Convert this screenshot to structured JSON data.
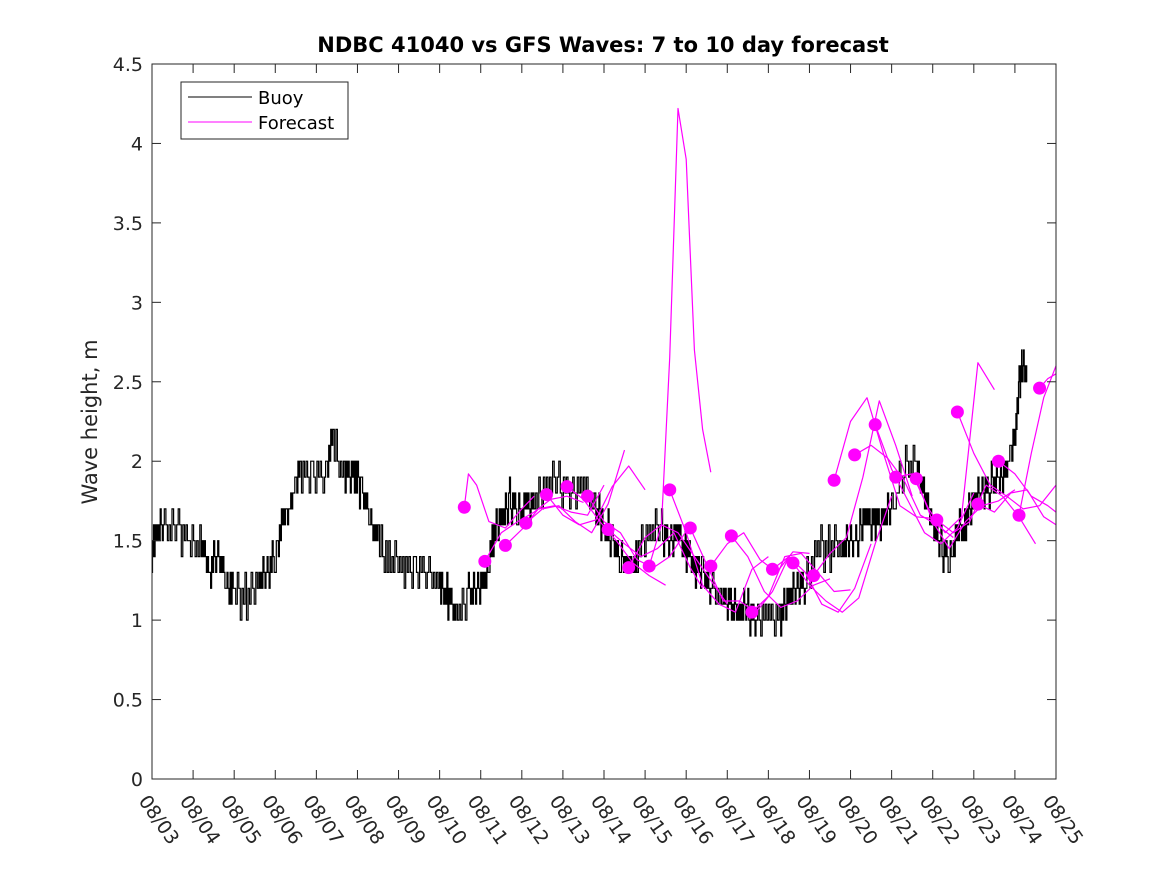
{
  "chart_data": {
    "type": "line",
    "title": "NDBC 41040 vs GFS Waves: 7 to 10 day forecast",
    "xlabel": "",
    "ylabel": "Wave height, m",
    "xlim": [
      0,
      22
    ],
    "ylim": [
      0,
      4.5
    ],
    "y_ticks": [
      {
        "value": 0,
        "label": "0"
      },
      {
        "value": 0.5,
        "label": "0.5"
      },
      {
        "value": 1,
        "label": "1"
      },
      {
        "value": 1.5,
        "label": "1.5"
      },
      {
        "value": 2,
        "label": "2"
      },
      {
        "value": 2.5,
        "label": "2.5"
      },
      {
        "value": 3,
        "label": "3"
      },
      {
        "value": 3.5,
        "label": "3.5"
      },
      {
        "value": 4,
        "label": "4"
      },
      {
        "value": 4.5,
        "label": "4.5"
      }
    ],
    "x_ticks": [
      {
        "value": 0,
        "label": "08/03"
      },
      {
        "value": 1,
        "label": "08/04"
      },
      {
        "value": 2,
        "label": "08/05"
      },
      {
        "value": 3,
        "label": "08/06"
      },
      {
        "value": 4,
        "label": "08/07"
      },
      {
        "value": 5,
        "label": "08/08"
      },
      {
        "value": 6,
        "label": "08/09"
      },
      {
        "value": 7,
        "label": "08/10"
      },
      {
        "value": 8,
        "label": "08/11"
      },
      {
        "value": 9,
        "label": "08/12"
      },
      {
        "value": 10,
        "label": "08/13"
      },
      {
        "value": 11,
        "label": "08/14"
      },
      {
        "value": 12,
        "label": "08/15"
      },
      {
        "value": 13,
        "label": "08/16"
      },
      {
        "value": 14,
        "label": "08/17"
      },
      {
        "value": 15,
        "label": "08/18"
      },
      {
        "value": 16,
        "label": "08/19"
      },
      {
        "value": 17,
        "label": "08/20"
      },
      {
        "value": 18,
        "label": "08/21"
      },
      {
        "value": 19,
        "label": "08/22"
      },
      {
        "value": 20,
        "label": "08/23"
      },
      {
        "value": 21,
        "label": "08/24"
      },
      {
        "value": 22,
        "label": "08/25"
      }
    ],
    "legend": {
      "position": "top-left",
      "entries": [
        {
          "name": "Buoy",
          "color": "#000000"
        },
        {
          "name": "Forecast",
          "color": "#ff00ff"
        }
      ]
    },
    "colors": {
      "buoy": "#000000",
      "forecast": "#ff00ff"
    },
    "series": [
      {
        "name": "Buoy",
        "role": "buoy",
        "x": [
          0,
          0.1,
          0.3,
          0.6,
          0.9,
          1.2,
          1.4,
          1.6,
          1.8,
          2.0,
          2.3,
          2.6,
          2.8,
          3.0,
          3.2,
          3.4,
          3.6,
          3.9,
          4.2,
          4.4,
          4.7,
          4.9,
          5.1,
          5.3,
          5.5,
          5.8,
          6.1,
          6.4,
          6.7,
          7.0,
          7.2,
          7.4,
          7.7,
          7.9,
          8.1,
          8.3,
          8.5,
          8.7,
          8.9,
          9.1,
          9.3,
          9.6,
          9.9,
          10.2,
          10.5,
          10.8,
          11.0,
          11.2,
          11.4,
          11.6,
          11.8,
          12.1,
          12.4,
          12.6,
          12.8,
          13.0,
          13.2,
          13.4,
          13.6,
          13.9,
          14.1,
          14.3,
          14.5,
          14.7,
          15.0,
          15.3,
          15.5,
          15.7,
          15.9,
          16.2,
          16.5,
          16.8,
          17.0,
          17.2,
          17.4,
          17.6,
          17.8,
          18.0,
          18.3,
          18.6,
          18.8,
          19.0,
          19.2,
          19.4,
          19.6,
          19.8,
          20.0,
          20.2,
          20.4,
          20.6,
          20.8,
          21.0,
          21.1,
          21.2,
          21.3
        ],
        "y": [
          1.4,
          1.6,
          1.55,
          1.6,
          1.45,
          1.5,
          1.3,
          1.4,
          1.25,
          1.15,
          1.15,
          1.25,
          1.3,
          1.4,
          1.6,
          1.75,
          1.95,
          1.9,
          1.9,
          2.1,
          1.9,
          1.95,
          1.8,
          1.65,
          1.5,
          1.35,
          1.35,
          1.3,
          1.3,
          1.2,
          1.15,
          1.05,
          1.15,
          1.2,
          1.25,
          1.5,
          1.65,
          1.75,
          1.65,
          1.7,
          1.75,
          1.85,
          1.85,
          1.8,
          1.85,
          1.7,
          1.6,
          1.5,
          1.4,
          1.3,
          1.4,
          1.55,
          1.55,
          1.5,
          1.55,
          1.45,
          1.35,
          1.3,
          1.2,
          1.1,
          1.1,
          1.05,
          1.05,
          1.0,
          1.0,
          1.0,
          1.15,
          1.2,
          1.25,
          1.45,
          1.45,
          1.5,
          1.45,
          1.55,
          1.65,
          1.6,
          1.65,
          1.7,
          1.95,
          1.95,
          1.75,
          1.6,
          1.45,
          1.4,
          1.55,
          1.6,
          1.75,
          1.8,
          1.85,
          1.85,
          1.95,
          2.15,
          2.45,
          2.65,
          2.5
        ]
      },
      {
        "name": "Forecast",
        "role": "forecast",
        "x": [
          7.6,
          7.7,
          7.9,
          8.2,
          8.6,
          9.0,
          9.3
        ],
        "y": [
          1.71,
          1.92,
          1.85,
          1.62,
          1.58,
          1.7,
          1.78
        ]
      },
      {
        "name": "Forecast",
        "role": "forecast",
        "x": [
          8.1,
          8.5,
          8.9,
          9.3,
          9.7,
          10.1,
          10.5
        ],
        "y": [
          1.37,
          1.55,
          1.62,
          1.68,
          1.76,
          1.78,
          1.74
        ]
      },
      {
        "name": "Forecast",
        "role": "forecast",
        "x": [
          8.6,
          9.0,
          9.4,
          9.8,
          10.2,
          10.6,
          11.0
        ],
        "y": [
          1.47,
          1.57,
          1.7,
          1.72,
          1.68,
          1.66,
          1.85
        ]
      },
      {
        "name": "Forecast",
        "role": "forecast",
        "x": [
          9.1,
          9.5,
          9.9,
          10.3,
          10.7,
          11.1,
          11.5
        ],
        "y": [
          1.61,
          1.7,
          1.72,
          1.62,
          1.55,
          1.73,
          2.07
        ]
      },
      {
        "name": "Forecast",
        "role": "forecast",
        "x": [
          9.6,
          10.0,
          10.4,
          10.8,
          11.2,
          11.6,
          12.0
        ],
        "y": [
          1.79,
          1.66,
          1.6,
          1.63,
          1.84,
          1.97,
          1.82
        ]
      },
      {
        "name": "Forecast",
        "role": "forecast",
        "x": [
          10.1,
          10.5,
          10.9,
          11.3,
          11.7,
          12.1,
          12.5
        ],
        "y": [
          1.84,
          1.76,
          1.62,
          1.5,
          1.36,
          1.28,
          1.22
        ]
      },
      {
        "name": "Forecast",
        "role": "forecast",
        "x": [
          10.6,
          11.0,
          11.4,
          11.8,
          12.2,
          12.6,
          13.0
        ],
        "y": [
          1.78,
          1.62,
          1.55,
          1.38,
          1.33,
          1.4,
          1.56
        ]
      },
      {
        "name": "Forecast",
        "role": "forecast",
        "x": [
          11.1,
          11.5,
          11.9,
          12.3,
          12.7,
          13.1,
          13.4
        ],
        "y": [
          1.57,
          1.48,
          1.4,
          1.45,
          1.55,
          1.33,
          1.2
        ]
      },
      {
        "name": "Forecast",
        "role": "forecast",
        "x": [
          11.6,
          12.0,
          12.4,
          12.8,
          13.2,
          13.6,
          14.0
        ],
        "y": [
          1.33,
          1.52,
          1.6,
          1.55,
          1.4,
          1.25,
          1.1
        ]
      },
      {
        "name": "Forecast",
        "role": "forecast",
        "x": [
          12.1,
          12.4,
          12.6,
          12.8,
          13.0,
          13.2,
          13.4,
          13.6
        ],
        "y": [
          1.34,
          1.6,
          2.65,
          4.22,
          3.9,
          2.7,
          2.2,
          1.93
        ]
      },
      {
        "name": "Forecast",
        "role": "forecast",
        "x": [
          12.6,
          13.0,
          13.4,
          13.8,
          14.2,
          14.6,
          15.0
        ],
        "y": [
          1.82,
          1.55,
          1.22,
          1.1,
          1.05,
          1.32,
          1.4
        ]
      },
      {
        "name": "Forecast",
        "role": "forecast",
        "x": [
          13.1,
          13.5,
          13.9,
          14.3,
          14.7,
          15.1,
          15.5
        ],
        "y": [
          1.58,
          1.35,
          1.12,
          1.12,
          1.05,
          1.18,
          1.4
        ]
      },
      {
        "name": "Forecast",
        "role": "forecast",
        "x": [
          13.6,
          14.0,
          14.4,
          14.8,
          15.2,
          15.6,
          16.0
        ],
        "y": [
          1.34,
          1.48,
          1.55,
          1.38,
          1.3,
          1.43,
          1.42
        ]
      },
      {
        "name": "Forecast",
        "role": "forecast",
        "x": [
          14.1,
          14.5,
          14.9,
          15.3,
          15.7,
          16.1,
          16.5
        ],
        "y": [
          1.53,
          1.4,
          1.18,
          1.08,
          1.12,
          1.22,
          1.26
        ]
      },
      {
        "name": "Forecast",
        "role": "forecast",
        "x": [
          14.6,
          15.0,
          15.4,
          15.8,
          16.2,
          16.6,
          17.0
        ],
        "y": [
          1.05,
          1.15,
          1.4,
          1.42,
          1.3,
          1.18,
          1.19
        ]
      },
      {
        "name": "Forecast",
        "role": "forecast",
        "x": [
          15.1,
          15.5,
          15.9,
          16.3,
          16.7,
          17.1,
          17.5
        ],
        "y": [
          1.32,
          1.4,
          1.3,
          1.1,
          1.05,
          1.2,
          1.48
        ]
      },
      {
        "name": "Forecast",
        "role": "forecast",
        "x": [
          15.6,
          16.0,
          16.4,
          16.8,
          17.2,
          17.6,
          18.0
        ],
        "y": [
          1.36,
          1.22,
          1.12,
          1.05,
          1.14,
          1.48,
          1.78
        ]
      },
      {
        "name": "Forecast",
        "role": "forecast",
        "x": [
          16.1,
          16.5,
          16.9,
          17.3,
          17.7,
          18.1,
          18.5
        ],
        "y": [
          1.28,
          1.42,
          1.52,
          1.9,
          2.38,
          2.1,
          1.78
        ]
      },
      {
        "name": "Forecast",
        "role": "forecast",
        "x": [
          16.6,
          17.0,
          17.4,
          17.8,
          18.2,
          18.6,
          19.0
        ],
        "y": [
          1.88,
          2.25,
          2.4,
          2.05,
          1.72,
          1.65,
          1.64
        ]
      },
      {
        "name": "Forecast",
        "role": "forecast",
        "x": [
          17.1,
          17.5,
          17.9,
          18.3,
          18.7,
          19.1,
          19.5
        ],
        "y": [
          2.04,
          2.1,
          2.02,
          1.88,
          1.66,
          1.6,
          1.52
        ]
      },
      {
        "name": "Forecast",
        "role": "forecast",
        "x": [
          17.6,
          18.0,
          18.4,
          18.8,
          19.2,
          19.6,
          20.0
        ],
        "y": [
          2.23,
          1.95,
          1.75,
          1.55,
          1.48,
          1.58,
          1.8
        ]
      },
      {
        "name": "Forecast",
        "role": "forecast",
        "x": [
          18.1,
          18.5,
          18.9,
          19.3,
          19.7,
          20.1,
          20.5
        ],
        "y": [
          1.9,
          1.92,
          1.7,
          1.55,
          1.65,
          2.62,
          2.45
        ]
      },
      {
        "name": "Forecast",
        "role": "forecast",
        "x": [
          18.6,
          19.0,
          19.4,
          19.8,
          20.2,
          20.6,
          21.0
        ],
        "y": [
          1.89,
          1.62,
          1.45,
          1.62,
          1.72,
          1.75,
          1.82
        ]
      },
      {
        "name": "Forecast",
        "role": "forecast",
        "x": [
          19.1,
          19.5,
          19.9,
          20.3,
          20.7,
          21.1,
          21.5
        ],
        "y": [
          1.63,
          1.55,
          1.62,
          1.85,
          1.78,
          1.65,
          1.48
        ]
      },
      {
        "name": "Forecast",
        "role": "forecast",
        "x": [
          19.6,
          20.0,
          20.4,
          20.8,
          21.2,
          21.6,
          22.0
        ],
        "y": [
          2.31,
          2.05,
          1.85,
          1.78,
          1.7,
          1.72,
          1.85
        ]
      },
      {
        "name": "Forecast",
        "role": "forecast",
        "x": [
          20.1,
          20.5,
          20.9,
          21.3,
          21.7,
          22.0
        ],
        "y": [
          1.73,
          1.68,
          1.8,
          1.82,
          1.65,
          1.6
        ]
      },
      {
        "name": "Forecast",
        "role": "forecast",
        "x": [
          20.6,
          21.0,
          21.4,
          21.8,
          22.0
        ],
        "y": [
          2.0,
          1.92,
          1.78,
          1.72,
          1.68
        ]
      },
      {
        "name": "Forecast",
        "role": "forecast",
        "x": [
          21.1,
          21.4,
          21.7,
          22.0
        ],
        "y": [
          1.66,
          2.05,
          2.4,
          2.6
        ]
      },
      {
        "name": "Forecast",
        "role": "forecast",
        "x": [
          21.6,
          21.8,
          22.0
        ],
        "y": [
          2.46,
          2.52,
          2.55
        ]
      }
    ],
    "forecast_start_points": {
      "x": [
        7.6,
        8.1,
        8.6,
        9.1,
        9.6,
        10.1,
        10.6,
        11.1,
        11.6,
        12.1,
        12.6,
        13.1,
        13.6,
        14.1,
        14.6,
        15.1,
        15.6,
        16.1,
        16.6,
        17.1,
        17.6,
        18.1,
        18.6,
        19.1,
        19.6,
        20.1,
        20.6,
        21.1,
        21.6
      ],
      "y": [
        1.71,
        1.37,
        1.47,
        1.61,
        1.79,
        1.84,
        1.78,
        1.57,
        1.33,
        1.34,
        1.82,
        1.58,
        1.34,
        1.53,
        1.05,
        1.32,
        1.36,
        1.28,
        1.88,
        2.04,
        2.23,
        1.9,
        1.89,
        1.63,
        2.31,
        1.73,
        2.0,
        1.66,
        2.46
      ]
    }
  }
}
